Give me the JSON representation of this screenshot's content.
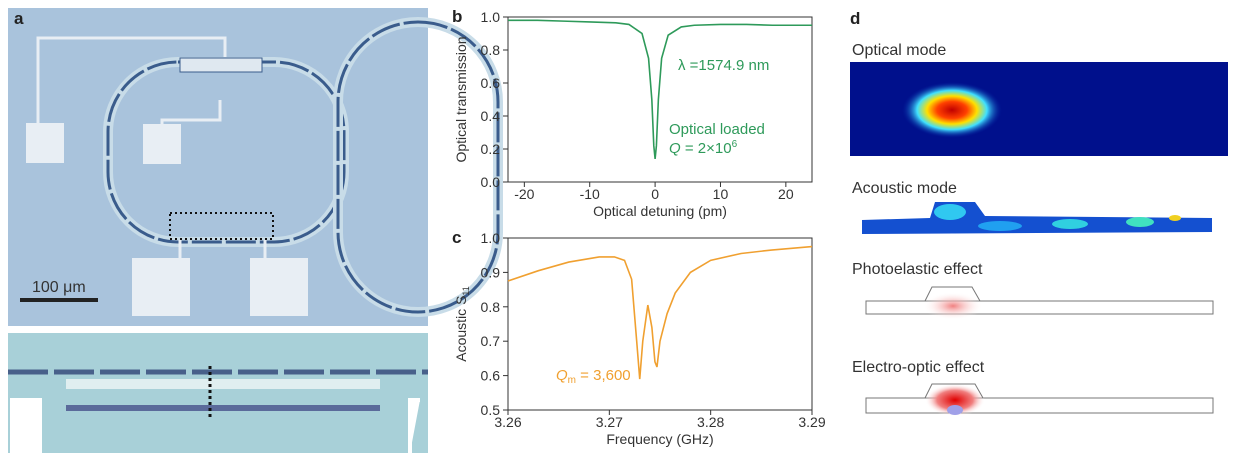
{
  "panels": {
    "a": {
      "label": "a",
      "scale_bar": "100 μm"
    },
    "d": {
      "label": "d",
      "optical_mode": "Optical mode",
      "acoustic_mode": "Acoustic mode",
      "photoelastic": "Photoelastic effect",
      "electro_optic": "Electro-optic effect"
    }
  },
  "chart_data": [
    {
      "type": "line",
      "panel_label": "b",
      "xlabel": "Optical detuning (pm)",
      "ylabel": "Optical transmission",
      "x": [
        -22.5,
        -18,
        -14,
        -10,
        -6,
        -4,
        -2,
        -1,
        -0.5,
        -0.2,
        0,
        0.2,
        0.5,
        1,
        2,
        4,
        6,
        10,
        14,
        18,
        22,
        24
      ],
      "values": [
        0.98,
        0.98,
        0.975,
        0.97,
        0.965,
        0.955,
        0.9,
        0.75,
        0.5,
        0.22,
        0.14,
        0.22,
        0.5,
        0.75,
        0.89,
        0.94,
        0.95,
        0.955,
        0.955,
        0.95,
        0.95,
        0.95
      ],
      "color": "#2e9a5a",
      "xlim": [
        -22.5,
        24
      ],
      "ylim": [
        0,
        1
      ],
      "xticks": [
        -20,
        -10,
        0,
        10,
        20
      ],
      "yticks": [
        {
          "value": 0,
          "label": "0.0"
        },
        0.2,
        0.4,
        0.6,
        0.8,
        {
          "value": 1,
          "label": "1.0"
        }
      ],
      "annotations": [
        "λ =1574.9 nm",
        "Optical loaded",
        "Q",
        " = 2×10",
        "6"
      ]
    },
    {
      "type": "line",
      "panel_label": "c",
      "xlabel": "Frequency (GHz)",
      "ylabel": "Acoustic S",
      "ylabel_sub": "11",
      "x": [
        3.26,
        3.263,
        3.266,
        3.269,
        3.2705,
        3.2715,
        3.2722,
        3.2727,
        3.273,
        3.2733,
        3.2738,
        3.2742,
        3.2745,
        3.2747,
        3.275,
        3.2757,
        3.2765,
        3.278,
        3.28,
        3.283,
        3.286,
        3.29
      ],
      "values": [
        0.875,
        0.905,
        0.93,
        0.945,
        0.945,
        0.935,
        0.88,
        0.7,
        0.59,
        0.7,
        0.805,
        0.74,
        0.64,
        0.625,
        0.7,
        0.78,
        0.84,
        0.9,
        0.935,
        0.955,
        0.965,
        0.975
      ],
      "color": "#f0a030",
      "xlim": [
        3.26,
        3.29
      ],
      "ylim": [
        0.5,
        1
      ],
      "xticks": [
        3.26,
        3.27,
        3.28,
        3.29
      ],
      "yticks": [
        0.5,
        0.6,
        0.7,
        0.8,
        0.9,
        {
          "value": 1,
          "label": "1.0"
        }
      ],
      "annotations": [
        "Q",
        "m",
        " = 3,600"
      ]
    }
  ]
}
